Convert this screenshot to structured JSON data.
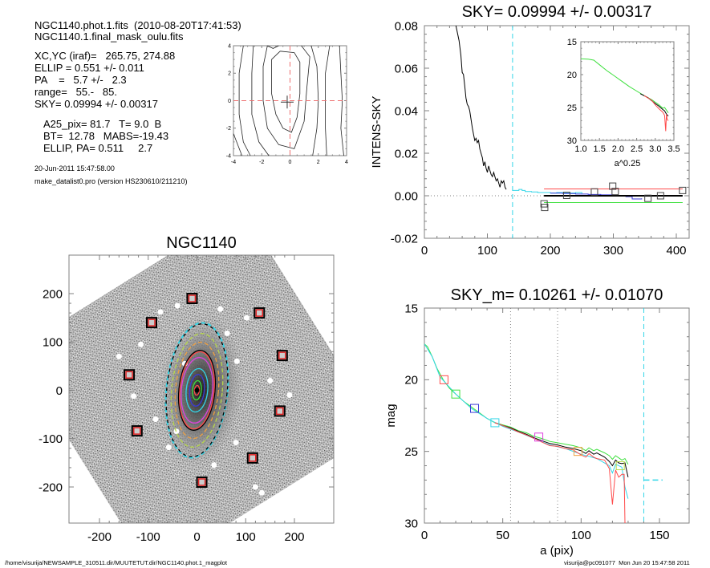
{
  "header_info": {
    "file_line": "NGC1140.phot.1.fits  (2010-08-20T17:41:53)",
    "mask_line": "NGC1140.1.final_mask_oulu.fits",
    "xcyc_line": "XC,YC (iraf)=   265.75, 274.88",
    "ellip_line": "ELLIP = 0.551 +/- 0.011",
    "pa_line": "PA    =   5.7 +/-   2.3",
    "range_line": "range=   55.-   85.",
    "sky_line": "SKY= 0.09994 +/- 0.00317",
    "a25_line": "A25_pix= 81.7   T= 9.0  B",
    "bt_line": "BT=  12.78   MABS=-19.43",
    "ellip_pa_line": "ELLIP, PA= 0.511     2.7",
    "date_line": "20-Jun-2011 15:47:58.00",
    "program_line": "make_datalist0.pro (version HS230610/211210)"
  },
  "footer": {
    "path": "/home/visurija/NEWSAMPLE_310511.dir/MUUTETUT.dir/NGC1140.phot.1_magplot",
    "user_stamp": "visurija@pc091077  Mon Jun 20 15:47:58 2011"
  },
  "colors": {
    "black": "#000000",
    "red": "#ff4b4b",
    "green": "#3ee03e",
    "cyan": "#33d6e8",
    "blue": "#3a3ad6",
    "magenta": "#e040e0",
    "orange": "#f0a040",
    "yellowgreen": "#b8d84a",
    "dotted": "#808080",
    "axis": "#808080",
    "refline_red": "#ee6060"
  },
  "chart_data": [
    {
      "id": "centering-contour",
      "type": "contour",
      "title": "",
      "xlim": [
        -4,
        4
      ],
      "ylim": [
        -4,
        4
      ],
      "xticks": [
        -4,
        -2,
        0,
        2,
        4
      ],
      "yticks": [
        -4,
        -2,
        0,
        2,
        4
      ],
      "center_marker": [
        -0.2,
        -0.1
      ],
      "crosshair": [
        0,
        0
      ],
      "contours": [
        [
          [
            -0.7,
            3.6
          ],
          [
            0.3,
            3.5
          ],
          [
            0.7,
            2.8
          ],
          [
            0.7,
            0.5
          ],
          [
            0.5,
            -1.2
          ],
          [
            0.1,
            -2.3
          ],
          [
            -0.5,
            -2.0
          ],
          [
            -1.0,
            -1.0
          ],
          [
            -1.3,
            0.5
          ],
          [
            -1.3,
            3.0
          ],
          [
            -0.7,
            3.6
          ]
        ],
        [
          [
            -1.6,
            4.0
          ],
          [
            -1.2,
            3.8
          ],
          [
            -0.8,
            4.0
          ]
        ],
        [
          [
            0.8,
            4.0
          ],
          [
            1.4,
            3.2
          ],
          [
            1.2,
            1.0
          ],
          [
            1.0,
            -1.5
          ],
          [
            0.3,
            -3.5
          ],
          [
            -0.8,
            -3.2
          ],
          [
            -1.6,
            -2.0
          ],
          [
            -1.9,
            0.0
          ],
          [
            -1.9,
            2.5
          ],
          [
            -1.6,
            4.0
          ]
        ],
        [
          [
            -2.6,
            4.0
          ],
          [
            -2.7,
            2.0
          ],
          [
            -2.7,
            -1.0
          ],
          [
            -2.2,
            -3.0
          ],
          [
            -1.5,
            -4.0
          ]
        ],
        [
          [
            1.5,
            4.0
          ],
          [
            1.9,
            2.5
          ],
          [
            2.0,
            0.0
          ],
          [
            1.9,
            -2.0
          ],
          [
            1.6,
            -4.0
          ]
        ],
        [
          [
            -3.3,
            4.0
          ],
          [
            -3.6,
            2.0
          ],
          [
            -3.6,
            -1.0
          ],
          [
            -3.3,
            -3.0
          ],
          [
            -2.8,
            -4.0
          ]
        ],
        [
          [
            2.8,
            4.0
          ],
          [
            2.5,
            2.0
          ],
          [
            2.5,
            0.0
          ],
          [
            2.5,
            -2.0
          ],
          [
            2.6,
            -4.0
          ]
        ],
        [
          [
            3.5,
            4.0
          ],
          [
            3.6,
            2.0
          ],
          [
            3.7,
            0.0
          ],
          [
            3.6,
            -2.0
          ],
          [
            3.8,
            -4.0
          ]
        ],
        [
          [
            -4.0,
            -2.4
          ],
          [
            -3.4,
            -4.0
          ]
        ]
      ]
    },
    {
      "id": "sky-residual",
      "type": "line",
      "title": "SKY= 0.09994 +/- 0.00317",
      "xlabel": "",
      "ylabel": "INTENS-SKY",
      "xlim": [
        0,
        410
      ],
      "ylim": [
        -0.02,
        0.08
      ],
      "xticks": [
        0,
        100,
        200,
        300,
        400
      ],
      "yticks": [
        -0.02,
        0.0,
        0.02,
        0.04,
        0.06,
        0.08
      ],
      "ytick_labels": [
        "-0.02",
        "0.00",
        "0.02",
        "0.04",
        "0.06",
        "0.08"
      ],
      "vline_cyan": 140,
      "series": [
        {
          "name": "profile",
          "color": "black",
          "x": [
            50,
            55,
            58,
            60,
            62,
            64,
            66,
            68,
            70,
            72,
            74,
            76,
            78,
            80,
            82,
            84,
            86,
            88,
            90,
            92,
            94,
            96,
            98,
            100,
            102,
            104,
            106,
            108,
            110,
            112,
            114,
            116,
            118,
            120,
            122,
            124,
            126,
            128,
            130
          ],
          "y": [
            0.08,
            0.073,
            0.066,
            0.058,
            0.057,
            0.052,
            0.046,
            0.043,
            0.042,
            0.04,
            0.036,
            0.032,
            0.029,
            0.026,
            0.027,
            0.025,
            0.026,
            0.022,
            0.02,
            0.018,
            0.014,
            0.016,
            0.013,
            0.011,
            0.014,
            0.012,
            0.01,
            0.009,
            0.011,
            0.009,
            0.007,
            0.008,
            0.006,
            0.004,
            0.007,
            0.006,
            0.007,
            0.004,
            0.003
          ]
        },
        {
          "name": "sky-steps-cyan",
          "color": "cyan",
          "x": [
            140,
            150,
            155,
            160,
            170,
            180,
            200,
            210,
            220,
            240,
            250
          ],
          "y": [
            0.0025,
            0.003,
            0.0025,
            0.002,
            0.0018,
            0.0015,
            0.0013,
            0.0015,
            0.0013,
            0.0015,
            0.001
          ]
        },
        {
          "name": "sky-steps-blue",
          "color": "blue",
          "x": [
            200,
            220,
            240,
            260,
            280,
            300,
            310,
            320,
            330,
            345
          ],
          "y": [
            0.0012,
            0.001,
            0.0008,
            0.0006,
            0.0004,
            0.0002,
            0.0,
            -0.0004,
            -0.0015,
            -0.0012
          ]
        },
        {
          "name": "sky-upper",
          "color": "red",
          "x": [
            190,
            410
          ],
          "y": [
            0.0032,
            0.0032
          ]
        },
        {
          "name": "sky-mean",
          "color": "black",
          "x": [
            190,
            410
          ],
          "y": [
            0.0,
            0.0
          ]
        },
        {
          "name": "sky-lower",
          "color": "green",
          "x": [
            190,
            410
          ],
          "y": [
            -0.0032,
            -0.0032
          ]
        }
      ],
      "box_points": {
        "x": [
          190,
          191,
          226,
          270,
          299,
          303,
          355,
          375,
          410
        ],
        "y": [
          -0.0038,
          -0.0055,
          0.0002,
          0.0018,
          0.0045,
          0.002,
          -0.0012,
          -0.0,
          0.0025
        ]
      },
      "inset": {
        "type": "line",
        "xlabel": "a^0.25",
        "xlim": [
          1.0,
          3.5
        ],
        "ylim": [
          30,
          15
        ],
        "xticks": [
          1.0,
          1.5,
          2.0,
          2.5,
          3.0,
          3.5
        ],
        "xtick_labels": [
          "1.0",
          "1.5",
          "2.0",
          "2.5",
          "3.0",
          "3.5"
        ],
        "yticks": [
          15,
          20,
          25,
          30
        ],
        "series": [
          {
            "name": "green",
            "color": "green",
            "x": [
              1.0,
              1.2,
              1.35,
              1.5,
              1.7,
              1.9,
              2.1,
              2.3,
              2.5,
              2.7,
              2.9,
              3.0,
              3.1,
              3.2,
              3.25,
              3.3,
              3.35
            ],
            "y": [
              17.6,
              17.65,
              17.8,
              18.5,
              19.4,
              20.2,
              21.0,
              21.8,
              22.5,
              23.2,
              23.8,
              24.2,
              24.6,
              25.1,
              25.0,
              25.4,
              25.8
            ]
          },
          {
            "name": "black",
            "color": "black",
            "x": [
              2.6,
              2.8,
              3.0,
              3.1,
              3.2,
              3.25,
              3.3,
              3.35
            ],
            "y": [
              22.9,
              23.5,
              24.4,
              24.8,
              25.3,
              25.5,
              26.0,
              26.3
            ]
          },
          {
            "name": "red",
            "color": "red",
            "x": [
              2.7,
              2.9,
              3.0,
              3.1,
              3.2,
              3.25,
              3.28,
              3.3,
              3.32,
              3.35
            ],
            "y": [
              23.2,
              23.9,
              24.6,
              25.2,
              25.7,
              26.2,
              28.6,
              26.0,
              26.8,
              27.0
            ]
          }
        ]
      }
    },
    {
      "id": "galaxy-image",
      "type": "image",
      "title": "NGC1140",
      "xlim": [
        -265,
        280
      ],
      "ylim": [
        -275,
        275
      ],
      "xticks": [
        -200,
        -100,
        0,
        100,
        200
      ],
      "yticks": [
        -200,
        -100,
        0,
        100,
        200
      ],
      "sky_boxes": [
        [
          -10,
          190
        ],
        [
          -93,
          140
        ],
        [
          128,
          160
        ],
        [
          175,
          72
        ],
        [
          -139,
          32
        ],
        [
          170,
          -43
        ],
        [
          -123,
          -84
        ],
        [
          114,
          -140
        ],
        [
          10,
          -190
        ]
      ],
      "ellipses": [
        {
          "color": "cyan",
          "dash": true,
          "a": 140,
          "b": 63,
          "pa": 5.7
        },
        {
          "color": "black",
          "dash": true,
          "a": 138,
          "b": 62,
          "pa": 5.7
        },
        {
          "color": "yellowgreen",
          "dash": true,
          "a": 118,
          "b": 52,
          "pa": 5.7
        },
        {
          "color": "orange",
          "dash": true,
          "a": 100,
          "b": 44,
          "pa": 5.7
        },
        {
          "color": "black",
          "dash": false,
          "a": 83,
          "b": 37,
          "pa": 5.7
        },
        {
          "color": "red",
          "dash": false,
          "a": 80,
          "b": 35,
          "pa": 5.7
        },
        {
          "color": "magenta",
          "dash": false,
          "a": 68,
          "b": 32,
          "pa": 5.7
        },
        {
          "color": "cyan",
          "dash": false,
          "a": 45,
          "b": 22,
          "pa": 5.7
        },
        {
          "color": "blue",
          "dash": false,
          "a": 33,
          "b": 15,
          "pa": 5.7
        },
        {
          "color": "green",
          "dash": false,
          "a": 20,
          "b": 9,
          "pa": 5.7
        },
        {
          "color": "red",
          "dash": false,
          "a": 10,
          "b": 5,
          "pa": 5.7
        }
      ]
    },
    {
      "id": "mag-profile",
      "type": "line",
      "title": "SKY_m=  0.10261 +/- 0.01070",
      "xlabel": "a (pix)",
      "ylabel": "mag",
      "xlim": [
        0,
        168
      ],
      "ylim": [
        30,
        15
      ],
      "xticks": [
        0,
        50,
        100,
        150
      ],
      "yticks": [
        15,
        20,
        25,
        30
      ],
      "vlines_dotted": [
        55,
        85
      ],
      "vline_cyan_dashed": 140,
      "hline_cyan_dashed": {
        "x": [
          140,
          152
        ],
        "y": 27.0
      },
      "series": [
        {
          "name": "green",
          "color": "green",
          "x": [
            0,
            2,
            5,
            8,
            12,
            16,
            20,
            25,
            30,
            35,
            40,
            45,
            50,
            55,
            60,
            65,
            70,
            75,
            80,
            85,
            90,
            95,
            100,
            103,
            105,
            108,
            110,
            115,
            118,
            120,
            122,
            124,
            126,
            128,
            130
          ],
          "y": [
            17.5,
            17.7,
            18.4,
            19.2,
            20.0,
            20.6,
            21.0,
            21.5,
            21.9,
            22.3,
            22.7,
            23.0,
            23.15,
            23.3,
            23.55,
            23.7,
            23.95,
            24.1,
            24.3,
            24.4,
            24.5,
            24.6,
            24.75,
            24.95,
            24.75,
            24.95,
            24.85,
            25.1,
            25.3,
            25.55,
            25.3,
            25.45,
            25.6,
            25.5,
            25.9
          ]
        },
        {
          "name": "black",
          "color": "black",
          "x": [
            45,
            50,
            55,
            60,
            65,
            70,
            75,
            80,
            85,
            90,
            95,
            100,
            103,
            105,
            108,
            110,
            115,
            118,
            120,
            122,
            124,
            126,
            128,
            130
          ],
          "y": [
            23.0,
            23.2,
            23.35,
            23.6,
            23.8,
            24.05,
            24.25,
            24.45,
            24.55,
            24.7,
            24.8,
            24.95,
            25.15,
            24.95,
            25.2,
            25.1,
            25.4,
            25.7,
            26.0,
            25.6,
            25.8,
            25.85,
            25.8,
            26.8
          ]
        },
        {
          "name": "cyan",
          "color": "cyan",
          "x": [
            0,
            5,
            10,
            20,
            30,
            40,
            50,
            60,
            70,
            80,
            90,
            100,
            110,
            118,
            120,
            122,
            126,
            128,
            130
          ],
          "y": [
            17.5,
            18.4,
            19.8,
            21.0,
            22.0,
            22.7,
            23.25,
            23.65,
            24.1,
            24.55,
            24.8,
            25.2,
            25.5,
            26.0,
            26.5,
            25.9,
            26.1,
            27.5,
            28.3
          ]
        },
        {
          "name": "red",
          "color": "red",
          "x": [
            45,
            50,
            55,
            60,
            65,
            70,
            75,
            80,
            85,
            90,
            95,
            100,
            103,
            105,
            108,
            110,
            115,
            118,
            120,
            122,
            124,
            126,
            127.5,
            128,
            128.5
          ],
          "y": [
            23.0,
            23.2,
            23.4,
            23.65,
            23.85,
            24.1,
            24.35,
            24.6,
            24.65,
            24.8,
            24.9,
            25.25,
            25.4,
            25.15,
            25.4,
            25.5,
            25.6,
            26.2,
            28.7,
            26.3,
            26.8,
            26.6,
            26.6,
            30.0,
            30.0
          ]
        }
      ],
      "box_points": [
        {
          "x": 12.5,
          "y": 20.0,
          "color": "red"
        },
        {
          "x": 20,
          "y": 21.0,
          "color": "green"
        },
        {
          "x": 32,
          "y": 22.0,
          "color": "blue"
        },
        {
          "x": 45,
          "y": 23.0,
          "color": "cyan"
        },
        {
          "x": 73,
          "y": 24.0,
          "color": "magenta"
        },
        {
          "x": 98,
          "y": 25.0,
          "color": "orange"
        },
        {
          "x": 125,
          "y": 26.0,
          "color": "yellowgreen"
        }
      ]
    }
  ]
}
